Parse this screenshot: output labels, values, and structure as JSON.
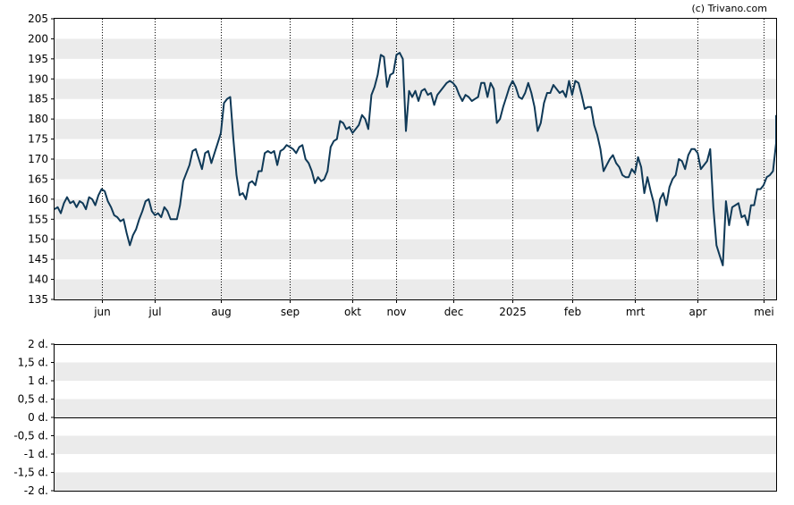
{
  "credit": "(c) Trivano.com",
  "chart_data": [
    {
      "type": "line",
      "title": "",
      "xlabel": "",
      "ylabel": "",
      "ylim": [
        135,
        205
      ],
      "yticks": [
        135,
        140,
        145,
        150,
        155,
        160,
        165,
        170,
        175,
        180,
        185,
        190,
        195,
        200,
        205
      ],
      "ytick_labels": [
        "135",
        "140",
        "145",
        "150",
        "155",
        "160",
        "165",
        "170",
        "175",
        "180",
        "185",
        "190",
        "195",
        "200",
        "205"
      ],
      "xticks": [
        {
          "x": 12,
          "label": "jun"
        },
        {
          "x": 29,
          "label": "jul"
        },
        {
          "x": 50,
          "label": "aug"
        },
        {
          "x": 72,
          "label": "sep"
        },
        {
          "x": 92,
          "label": "okt"
        },
        {
          "x": 106,
          "label": "nov"
        },
        {
          "x": 124,
          "label": "dec"
        },
        {
          "x": 143,
          "label": "2025"
        },
        {
          "x": 162,
          "label": "feb"
        },
        {
          "x": 182,
          "label": "mrt"
        },
        {
          "x": 202,
          "label": "apr"
        },
        {
          "x": 223,
          "label": "mei"
        }
      ],
      "xlim": [
        -3,
        227
      ],
      "grid": "alternating horizontal bands, dotted vertical month lines",
      "line_color": "#0f3957",
      "band_color": "#ebebeb",
      "series": [
        {
          "values": [
            [
              -3,
              157.5
            ],
            [
              -2,
              158
            ],
            [
              -1,
              156.5
            ],
            [
              0,
              159
            ],
            [
              1,
              160.5
            ],
            [
              2,
              159
            ],
            [
              3,
              159.5
            ],
            [
              4,
              158
            ],
            [
              5,
              159.5
            ],
            [
              6,
              159
            ],
            [
              7,
              157.5
            ],
            [
              8,
              160.5
            ],
            [
              9,
              160
            ],
            [
              10,
              158.5
            ],
            [
              11,
              161
            ],
            [
              12,
              162.5
            ],
            [
              13,
              162
            ],
            [
              14,
              159.5
            ],
            [
              15,
              158
            ],
            [
              16,
              156
            ],
            [
              17,
              155.5
            ],
            [
              18,
              154.5
            ],
            [
              19,
              155
            ],
            [
              20,
              151.5
            ],
            [
              21,
              148.5
            ],
            [
              22,
              151
            ],
            [
              23,
              152.5
            ],
            [
              24,
              155
            ],
            [
              25,
              157
            ],
            [
              26,
              159.5
            ],
            [
              27,
              160
            ],
            [
              28,
              157
            ],
            [
              29,
              156
            ],
            [
              30,
              156.5
            ],
            [
              31,
              155.5
            ],
            [
              32,
              158
            ],
            [
              33,
              157
            ],
            [
              34,
              155
            ],
            [
              35,
              155
            ],
            [
              36,
              155
            ],
            [
              37,
              158.5
            ],
            [
              38,
              164.5
            ],
            [
              39,
              166.5
            ],
            [
              40,
              168.5
            ],
            [
              41,
              172
            ],
            [
              42,
              172.5
            ],
            [
              43,
              170
            ],
            [
              44,
              167.5
            ],
            [
              45,
              171.5
            ],
            [
              46,
              172
            ],
            [
              47,
              169
            ],
            [
              48,
              171.5
            ],
            [
              49,
              174
            ],
            [
              50,
              176.5
            ],
            [
              51,
              184
            ],
            [
              52,
              185
            ],
            [
              53,
              185.5
            ],
            [
              54,
              175
            ],
            [
              55,
              166
            ],
            [
              56,
              161
            ],
            [
              57,
              161.5
            ],
            [
              58,
              160
            ],
            [
              59,
              164
            ],
            [
              60,
              164.5
            ],
            [
              61,
              163.5
            ],
            [
              62,
              167
            ],
            [
              63,
              167
            ],
            [
              64,
              171.5
            ],
            [
              65,
              172
            ],
            [
              66,
              171.5
            ],
            [
              67,
              172
            ],
            [
              68,
              168.5
            ],
            [
              69,
              172
            ],
            [
              70,
              172.5
            ],
            [
              71,
              173.5
            ],
            [
              72,
              173
            ],
            [
              73,
              172.5
            ],
            [
              74,
              171.5
            ],
            [
              75,
              173
            ],
            [
              76,
              173.5
            ],
            [
              77,
              170
            ],
            [
              78,
              169
            ],
            [
              79,
              167
            ],
            [
              80,
              164
            ],
            [
              81,
              165.5
            ],
            [
              82,
              164.5
            ],
            [
              83,
              165
            ],
            [
              84,
              167
            ],
            [
              85,
              173
            ],
            [
              86,
              174.5
            ],
            [
              87,
              175
            ],
            [
              88,
              179.5
            ],
            [
              89,
              179
            ],
            [
              90,
              177.5
            ],
            [
              91,
              178
            ],
            [
              92,
              176.5
            ],
            [
              93,
              177.5
            ],
            [
              94,
              178.5
            ],
            [
              95,
              181
            ],
            [
              96,
              180
            ],
            [
              97,
              177.5
            ],
            [
              98,
              186
            ],
            [
              99,
              188
            ],
            [
              100,
              191
            ],
            [
              101,
              196
            ],
            [
              102,
              195.5
            ],
            [
              103,
              188
            ],
            [
              104,
              191
            ],
            [
              105,
              191.5
            ],
            [
              106,
              196
            ],
            [
              107,
              196.5
            ],
            [
              108,
              195
            ],
            [
              109,
              177
            ],
            [
              110,
              187
            ],
            [
              111,
              185.5
            ],
            [
              112,
              187
            ],
            [
              113,
              184.5
            ],
            [
              114,
              187
            ],
            [
              115,
              187.5
            ],
            [
              116,
              186
            ],
            [
              117,
              186.5
            ],
            [
              118,
              183.5
            ],
            [
              119,
              186
            ],
            [
              120,
              187
            ],
            [
              121,
              188
            ],
            [
              122,
              189
            ],
            [
              123,
              189.5
            ],
            [
              124,
              189
            ],
            [
              125,
              188
            ],
            [
              126,
              186
            ],
            [
              127,
              184.5
            ],
            [
              128,
              186
            ],
            [
              129,
              185.5
            ],
            [
              130,
              184.5
            ],
            [
              131,
              185
            ],
            [
              132,
              185.5
            ],
            [
              133,
              189
            ],
            [
              134,
              189
            ],
            [
              135,
              185.5
            ],
            [
              136,
              189
            ],
            [
              137,
              187.5
            ],
            [
              138,
              179
            ],
            [
              139,
              180
            ],
            [
              140,
              183
            ],
            [
              141,
              185.5
            ],
            [
              142,
              188
            ],
            [
              143,
              189.5
            ],
            [
              144,
              188
            ],
            [
              145,
              185.5
            ],
            [
              146,
              185
            ],
            [
              147,
              186.5
            ],
            [
              148,
              189
            ],
            [
              149,
              186.5
            ],
            [
              150,
              183
            ],
            [
              151,
              177
            ],
            [
              152,
              179
            ],
            [
              153,
              184
            ],
            [
              154,
              186.5
            ],
            [
              155,
              186.5
            ],
            [
              156,
              188.5
            ],
            [
              157,
              187.5
            ],
            [
              158,
              186.5
            ],
            [
              159,
              187
            ],
            [
              160,
              185.5
            ],
            [
              161,
              189.5
            ],
            [
              162,
              186
            ],
            [
              163,
              189.5
            ],
            [
              164,
              189
            ],
            [
              165,
              186
            ],
            [
              166,
              182.5
            ],
            [
              167,
              183
            ],
            [
              168,
              183
            ],
            [
              169,
              178.5
            ],
            [
              170,
              176
            ],
            [
              171,
              172.5
            ],
            [
              172,
              167
            ],
            [
              173,
              168.5
            ],
            [
              174,
              170
            ],
            [
              175,
              171
            ],
            [
              176,
              169
            ],
            [
              177,
              168
            ],
            [
              178,
              166
            ],
            [
              179,
              165.5
            ],
            [
              180,
              165.5
            ],
            [
              181,
              167.5
            ],
            [
              182,
              166.5
            ],
            [
              183,
              170.5
            ],
            [
              184,
              168
            ],
            [
              185,
              161.5
            ],
            [
              186,
              165.5
            ],
            [
              187,
              162
            ],
            [
              188,
              159
            ],
            [
              189,
              154.5
            ],
            [
              190,
              160
            ],
            [
              191,
              161.5
            ],
            [
              192,
              158.5
            ],
            [
              193,
              163
            ],
            [
              194,
              165
            ],
            [
              195,
              166
            ],
            [
              196,
              170
            ],
            [
              197,
              169.5
            ],
            [
              198,
              167.5
            ],
            [
              199,
              171
            ],
            [
              200,
              172.5
            ],
            [
              201,
              172.5
            ],
            [
              202,
              171.5
            ],
            [
              203,
              167.5
            ],
            [
              204,
              168.5
            ],
            [
              205,
              169.5
            ],
            [
              206,
              172.5
            ],
            [
              207,
              158
            ],
            [
              208,
              148.5
            ],
            [
              209,
              146
            ],
            [
              210,
              143.5
            ],
            [
              211,
              159.5
            ],
            [
              212,
              153.5
            ],
            [
              213,
              158
            ],
            [
              214,
              158.5
            ],
            [
              215,
              159
            ],
            [
              216,
              155.5
            ],
            [
              217,
              156
            ],
            [
              218,
              153.5
            ],
            [
              219,
              158.5
            ],
            [
              220,
              158.5
            ],
            [
              221,
              162.5
            ],
            [
              222,
              162.5
            ],
            [
              223,
              163.5
            ],
            [
              224,
              165.5
            ],
            [
              225,
              166
            ],
            [
              226,
              167
            ],
            [
              227,
              174
            ],
            [
              228,
              173.5
            ],
            [
              229,
              173
            ],
            [
              230,
              175.5
            ],
            [
              231,
              181
            ]
          ]
        }
      ]
    },
    {
      "type": "line",
      "title": "",
      "ylim": [
        -2,
        2
      ],
      "yticks": [
        -2,
        -1.5,
        -1,
        -0.5,
        0,
        0.5,
        1,
        1.5,
        2
      ],
      "ytick_labels": [
        "-2 d.",
        "-1,5 d.",
        "-1 d.",
        "-0,5 d.",
        "0 d.",
        "0,5 d.",
        "1 d.",
        "1,5 d.",
        "2 d."
      ],
      "grid": "alternating horizontal bands, solid zero line",
      "series": []
    }
  ]
}
